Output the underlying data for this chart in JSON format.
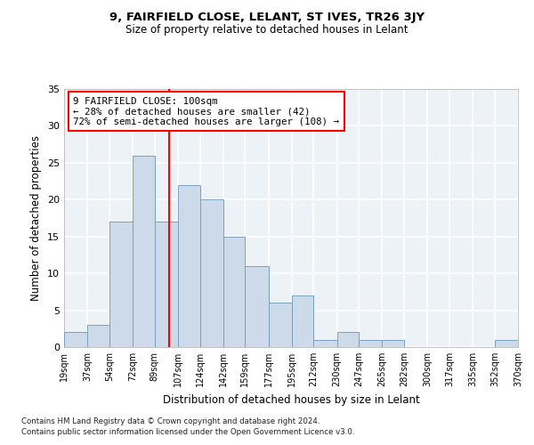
{
  "title": "9, FAIRFIELD CLOSE, LELANT, ST IVES, TR26 3JY",
  "subtitle": "Size of property relative to detached houses in Lelant",
  "xlabel": "Distribution of detached houses by size in Lelant",
  "ylabel": "Number of detached properties",
  "bar_color": "#cddaea",
  "bar_edge_color": "#7aa0c0",
  "bins": [
    19,
    37,
    54,
    72,
    89,
    107,
    124,
    142,
    159,
    177,
    195,
    212,
    230,
    247,
    265,
    282,
    300,
    317,
    335,
    352,
    370
  ],
  "counts": [
    2,
    3,
    17,
    26,
    17,
    22,
    20,
    15,
    11,
    6,
    7,
    1,
    2,
    1,
    1,
    0,
    0,
    0,
    0,
    1
  ],
  "tick_labels": [
    "19sqm",
    "37sqm",
    "54sqm",
    "72sqm",
    "89sqm",
    "107sqm",
    "124sqm",
    "142sqm",
    "159sqm",
    "177sqm",
    "195sqm",
    "212sqm",
    "230sqm",
    "247sqm",
    "265sqm",
    "282sqm",
    "300sqm",
    "317sqm",
    "335sqm",
    "352sqm",
    "370sqm"
  ],
  "vline_x": 100,
  "vline_color": "red",
  "annotation_text": "9 FAIRFIELD CLOSE: 100sqm\n← 28% of detached houses are smaller (42)\n72% of semi-detached houses are larger (108) →",
  "annotation_box_color": "white",
  "annotation_box_edge_color": "red",
  "ylim": [
    0,
    35
  ],
  "yticks": [
    0,
    5,
    10,
    15,
    20,
    25,
    30,
    35
  ],
  "tick_positions": [
    19,
    37,
    54,
    72,
    89,
    107,
    124,
    142,
    159,
    177,
    195,
    212,
    230,
    247,
    265,
    282,
    300,
    317,
    335,
    352,
    370
  ],
  "footer1": "Contains HM Land Registry data © Crown copyright and database right 2024.",
  "footer2": "Contains public sector information licensed under the Open Government Licence v3.0.",
  "bg_color": "#edf2f7",
  "grid_color": "white"
}
